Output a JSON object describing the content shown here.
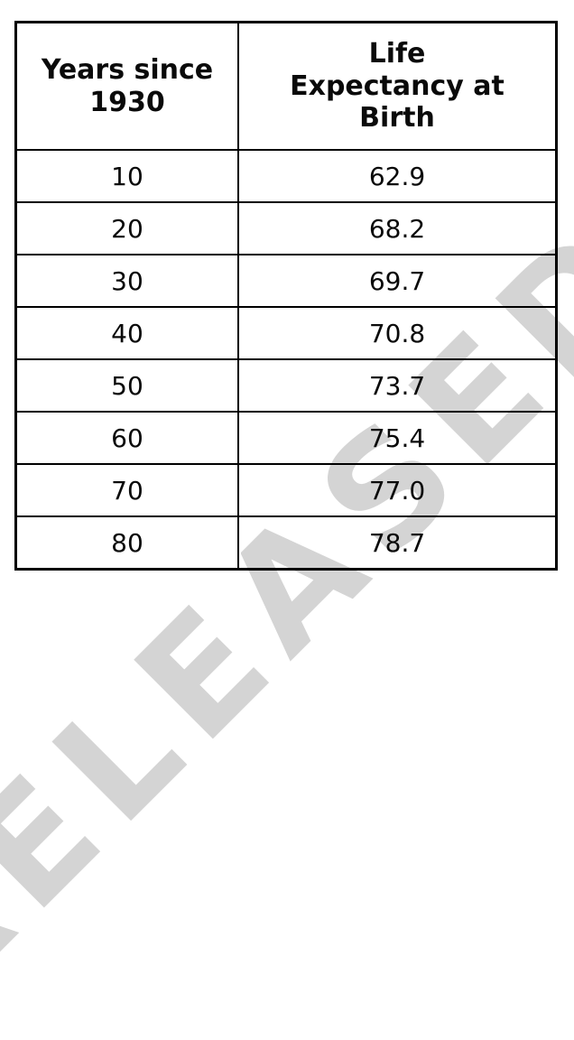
{
  "watermark": {
    "text": "RELEASED",
    "color": "#d4d4d4"
  },
  "table": {
    "columns": [
      {
        "label": "Years since 1930",
        "lines": [
          "Years since",
          "1930"
        ]
      },
      {
        "label": "Life Expectancy at Birth",
        "lines": [
          "Life",
          "Expectancy at",
          "Birth"
        ]
      }
    ],
    "rows": [
      {
        "years": "10",
        "life_expectancy": "62.9"
      },
      {
        "years": "20",
        "life_expectancy": "68.2"
      },
      {
        "years": "30",
        "life_expectancy": "69.7"
      },
      {
        "years": "40",
        "life_expectancy": "70.8"
      },
      {
        "years": "50",
        "life_expectancy": "73.7"
      },
      {
        "years": "60",
        "life_expectancy": "75.4"
      },
      {
        "years": "70",
        "life_expectancy": "77.0"
      },
      {
        "years": "80",
        "life_expectancy": "78.7"
      }
    ]
  },
  "chart_data": {
    "type": "table",
    "columns": [
      "Years since 1930",
      "Life Expectancy at Birth"
    ],
    "rows": [
      [
        "10",
        "62.9"
      ],
      [
        "20",
        "68.2"
      ],
      [
        "30",
        "69.7"
      ],
      [
        "40",
        "70.8"
      ],
      [
        "50",
        "73.7"
      ],
      [
        "60",
        "75.4"
      ],
      [
        "70",
        "77.0"
      ],
      [
        "80",
        "78.7"
      ]
    ]
  }
}
